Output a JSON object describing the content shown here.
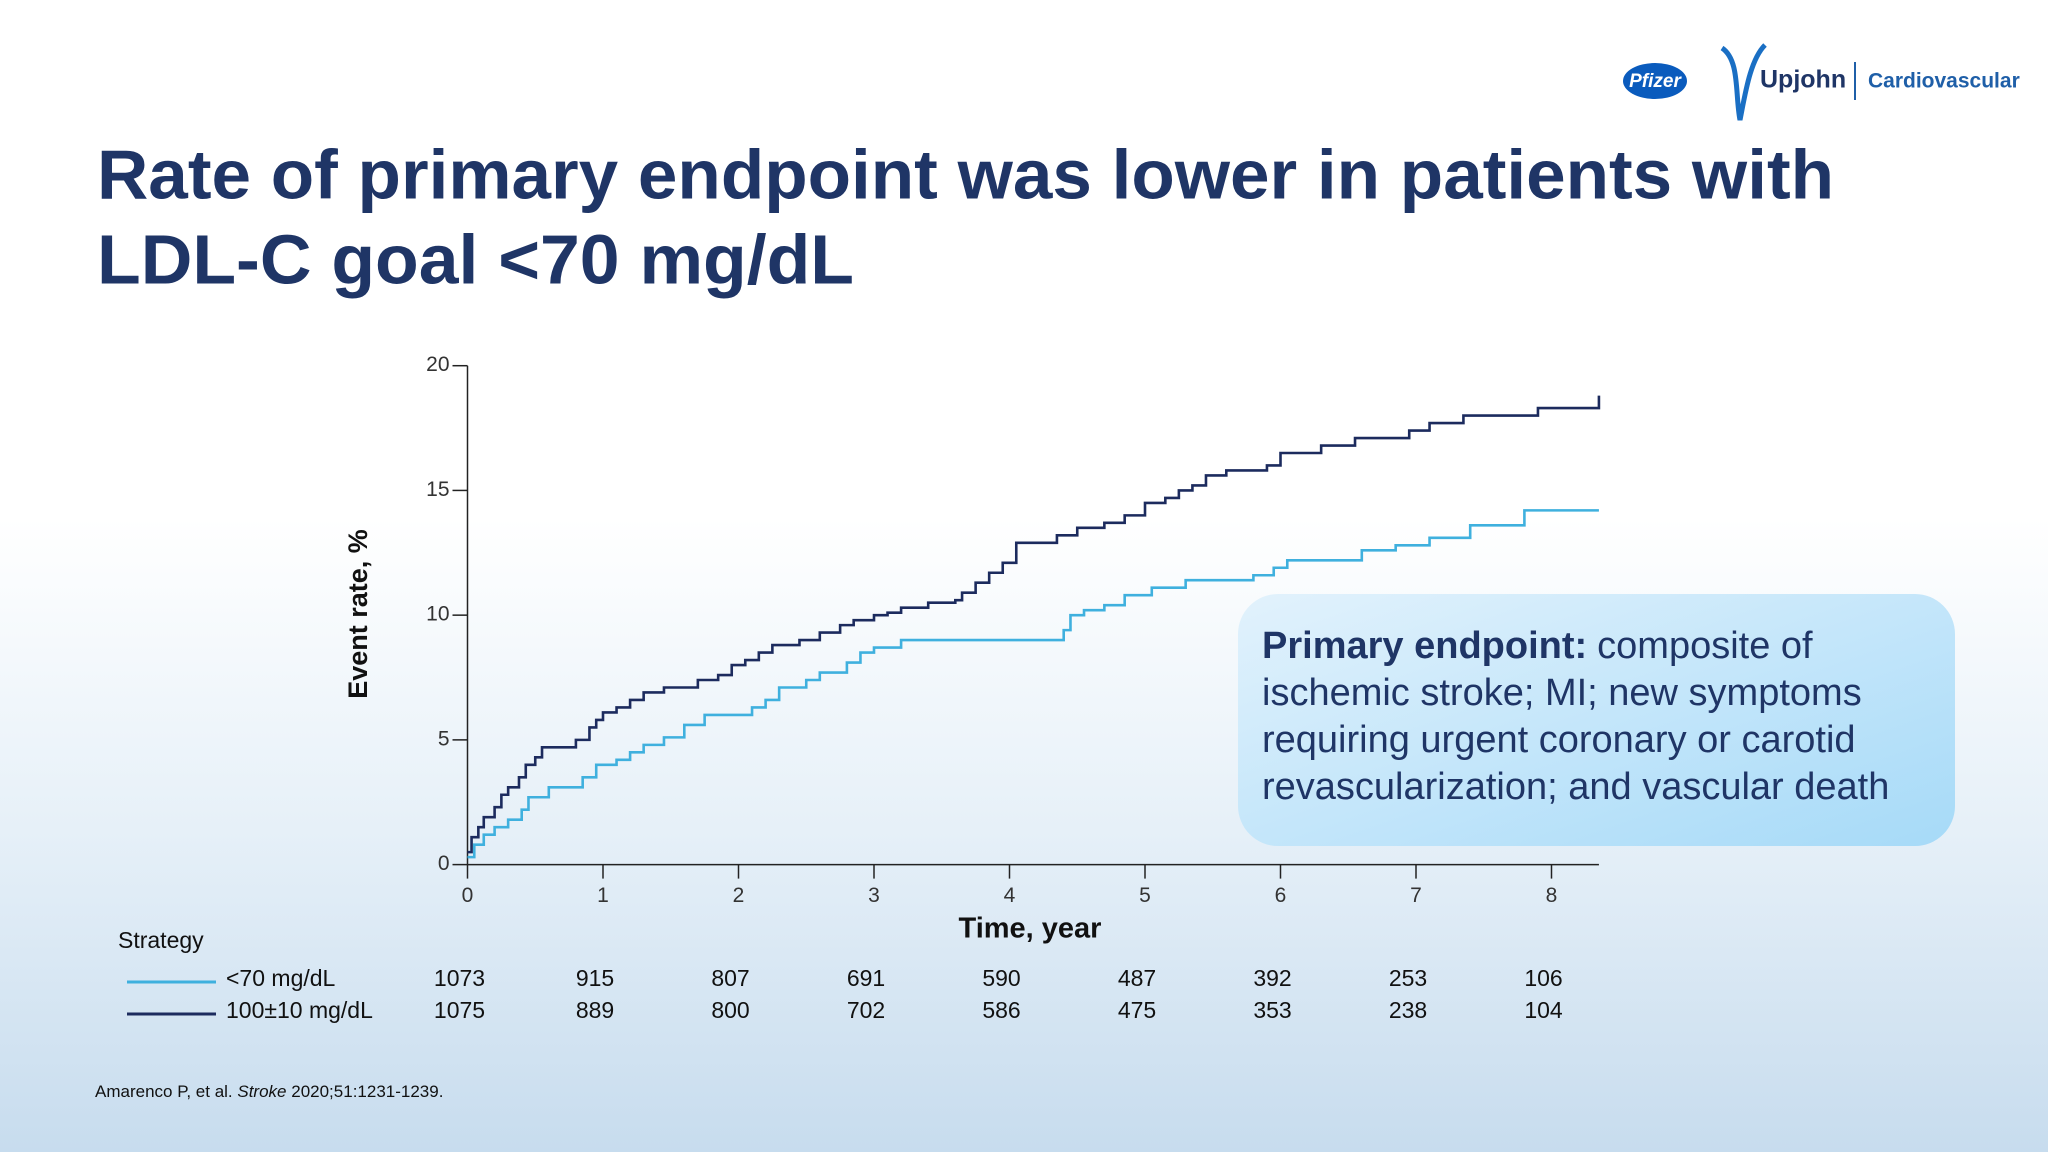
{
  "logos": {
    "pfizer": "Pfizer",
    "upjohn": "Upjohn",
    "division": "Cardiovascular"
  },
  "title": [
    "Rate of primary endpoint was lower in patients with",
    "LDL-C goal <70 mg/dL"
  ],
  "callout": {
    "heading": "Primary endpoint:",
    "lines": [
      "composite of",
      "ischemic stroke; MI; new symptoms",
      "requiring urgent coronary or carotid",
      "revascularization; and vascular death"
    ]
  },
  "chart_data": {
    "type": "line",
    "step": "post",
    "xlabel": "Time, year",
    "ylabel": "Event rate, %",
    "xlim": [
      0,
      8.35
    ],
    "ylim": [
      0,
      20
    ],
    "xticks": [
      0,
      1,
      2,
      3,
      4,
      5,
      6,
      7,
      8
    ],
    "yticks": [
      0,
      5,
      10,
      15,
      20
    ],
    "series": [
      {
        "name": "<70 mg/dL",
        "color": "#3fb0de",
        "x": [
          0,
          0.05,
          0.12,
          0.2,
          0.3,
          0.4,
          0.45,
          0.6,
          0.85,
          0.95,
          1.1,
          1.2,
          1.3,
          1.45,
          1.6,
          1.75,
          2.1,
          2.2,
          2.3,
          2.5,
          2.6,
          2.8,
          2.9,
          3.0,
          3.2,
          4.4,
          4.45,
          4.55,
          4.7,
          4.85,
          5.05,
          5.3,
          5.8,
          5.95,
          6.05,
          6.6,
          6.85,
          7.1,
          7.4,
          7.8,
          8.35
        ],
        "values": [
          0.3,
          0.8,
          1.2,
          1.5,
          1.8,
          2.2,
          2.7,
          3.1,
          3.5,
          4.0,
          4.2,
          4.5,
          4.8,
          5.1,
          5.6,
          6.0,
          6.3,
          6.6,
          7.1,
          7.4,
          7.7,
          8.1,
          8.5,
          8.7,
          9.0,
          9.4,
          10.0,
          10.2,
          10.4,
          10.8,
          11.1,
          11.4,
          11.6,
          11.9,
          12.2,
          12.6,
          12.8,
          13.1,
          13.6,
          14.2,
          14.2
        ]
      },
      {
        "name": "100±10 mg/dL",
        "color": "#1c2b5e",
        "x": [
          0,
          0.03,
          0.08,
          0.12,
          0.2,
          0.25,
          0.3,
          0.38,
          0.43,
          0.5,
          0.55,
          0.8,
          0.9,
          0.95,
          1.0,
          1.1,
          1.2,
          1.3,
          1.45,
          1.7,
          1.85,
          1.95,
          2.05,
          2.15,
          2.25,
          2.45,
          2.6,
          2.75,
          2.85,
          3.0,
          3.1,
          3.2,
          3.4,
          3.6,
          3.65,
          3.75,
          3.85,
          3.95,
          4.05,
          4.35,
          4.5,
          4.7,
          4.85,
          5.0,
          5.15,
          5.25,
          5.35,
          5.45,
          5.6,
          5.9,
          6.0,
          6.3,
          6.55,
          6.95,
          7.1,
          7.35,
          7.9,
          8.35
        ],
        "values": [
          0.5,
          1.1,
          1.5,
          1.9,
          2.3,
          2.8,
          3.1,
          3.5,
          4.0,
          4.3,
          4.7,
          5.0,
          5.5,
          5.8,
          6.1,
          6.3,
          6.6,
          6.9,
          7.1,
          7.4,
          7.6,
          8.0,
          8.2,
          8.5,
          8.8,
          9.0,
          9.3,
          9.6,
          9.8,
          10.0,
          10.1,
          10.3,
          10.5,
          10.6,
          10.9,
          11.3,
          11.7,
          12.1,
          12.9,
          13.2,
          13.5,
          13.7,
          14.0,
          14.5,
          14.7,
          15.0,
          15.2,
          15.6,
          15.8,
          16.0,
          16.5,
          16.8,
          17.1,
          17.4,
          17.7,
          18.0,
          18.3,
          18.8
        ]
      }
    ],
    "at_risk_title": "Strategy",
    "at_risk": [
      [
        1073,
        915,
        807,
        691,
        590,
        487,
        392,
        253,
        106
      ],
      [
        1075,
        889,
        800,
        702,
        586,
        475,
        353,
        238,
        104
      ]
    ]
  },
  "citation": {
    "authors": "Amarenco P, et al. ",
    "journal": "Stroke",
    "ref": " 2020;51:1231-1239."
  }
}
